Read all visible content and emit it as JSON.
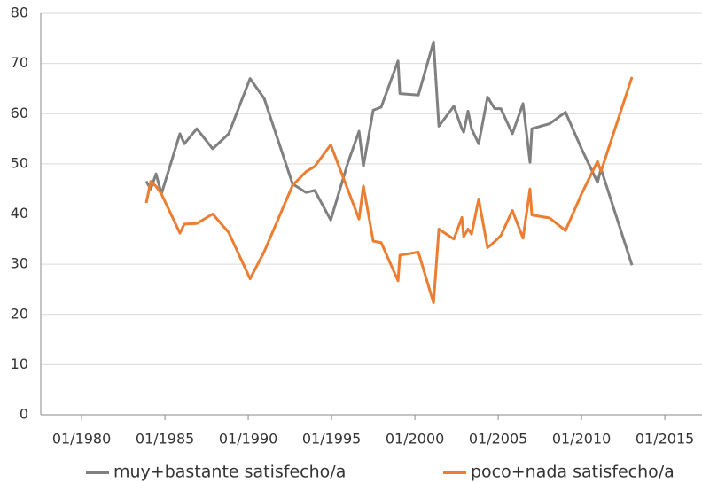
{
  "chart_data": {
    "type": "line",
    "x": [
      1983.88,
      1984.15,
      1984.47,
      1984.79,
      1985.9,
      1986.17,
      1986.91,
      1987.87,
      1988.83,
      1990.11,
      1990.96,
      1992.66,
      1993.46,
      1993.99,
      1994.95,
      1995.96,
      1996.65,
      1996.91,
      1997.5,
      1997.98,
      1998.99,
      1999.1,
      2000.21,
      2001.12,
      2001.44,
      2002.34,
      2002.82,
      2002.93,
      2003.19,
      2003.4,
      2003.83,
      2004.36,
      2004.79,
      2005.16,
      2005.85,
      2006.49,
      2006.91,
      2007.02,
      2008.09,
      2009.04,
      2010.0,
      2010.96,
      2011.17,
      2013.03
    ],
    "series": [
      {
        "name": "muy+bastante satisfecho/a",
        "color": "#808080",
        "values": [
          46.5,
          45,
          48,
          44,
          56,
          54,
          57,
          53,
          56,
          67,
          63,
          46,
          44.3,
          44.7,
          38.8,
          50,
          56.5,
          49.5,
          60.7,
          61.3,
          70.5,
          64,
          63.7,
          74.3,
          57.5,
          61.5,
          57,
          56.3,
          60.5,
          57,
          54,
          63.3,
          61,
          61,
          56,
          62,
          50.3,
          57,
          58,
          60.3,
          53,
          46.3,
          49,
          29.8
        ]
      },
      {
        "name": "poco+nada satisfecho/a",
        "color": "#ed7d31",
        "values": [
          42.2,
          46.5,
          45.5,
          44,
          36.2,
          38,
          38.1,
          40,
          36.3,
          27.1,
          32.5,
          45.7,
          48.4,
          49.5,
          53.8,
          45,
          39,
          45.6,
          34.6,
          34.3,
          26.7,
          31.8,
          32.4,
          22.3,
          37,
          35,
          39.3,
          35.5,
          37,
          36,
          43,
          33.3,
          34.5,
          35.7,
          40.7,
          35.2,
          45,
          39.8,
          39.2,
          36.7,
          44,
          50.5,
          48.5,
          67.3
        ]
      }
    ],
    "xlim": [
      1977.55,
      2017.23
    ],
    "xticks": [
      {
        "value": 1980,
        "label": "01/1980"
      },
      {
        "value": 1985,
        "label": "01/1985"
      },
      {
        "value": 1990,
        "label": "01/1990"
      },
      {
        "value": 1995,
        "label": "01/1995"
      },
      {
        "value": 2000,
        "label": "01/2000"
      },
      {
        "value": 2005,
        "label": "01/2005"
      },
      {
        "value": 2010,
        "label": "01/2010"
      },
      {
        "value": 2015,
        "label": "01/2015"
      }
    ],
    "ylim": [
      0,
      80
    ],
    "yticks": [
      0,
      10,
      20,
      30,
      40,
      50,
      60,
      70,
      80
    ],
    "grid": true,
    "legend": "bottom"
  }
}
